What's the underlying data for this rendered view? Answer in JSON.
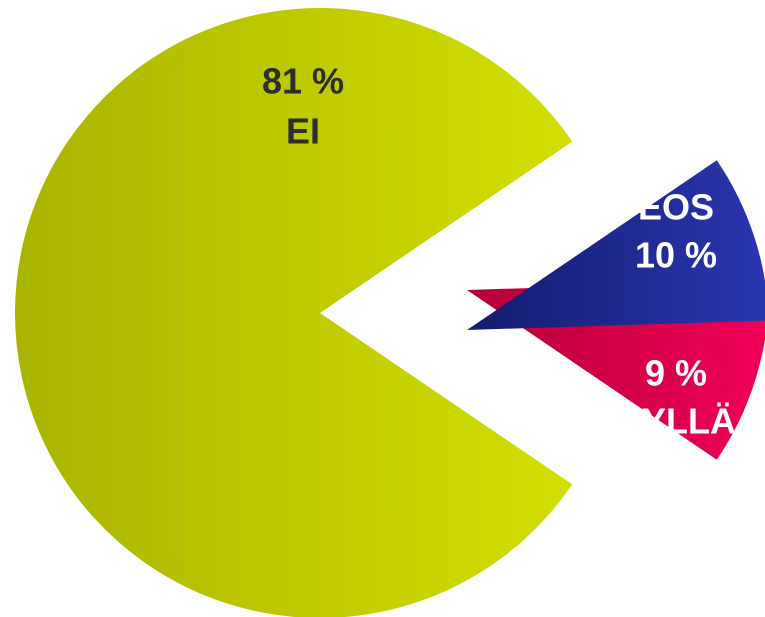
{
  "chart_data": {
    "type": "pie",
    "title": "",
    "legend": "none",
    "slices": [
      {
        "category": "EI",
        "value": 81,
        "value_label": "81 %",
        "color": "#b8c400",
        "gradient": [
          "#a9b400",
          "#d2df00"
        ],
        "label_color": "#2e2e2e",
        "value_first": true
      },
      {
        "category": "EOS",
        "value": 10,
        "value_label": "10 %",
        "color": "#e8004c",
        "gradient": [
          "#b30036",
          "#f2005a"
        ],
        "label_color": "#ffffff",
        "value_first": false
      },
      {
        "category": "KYLLÄ",
        "value": 9,
        "value_label": "9 %",
        "color": "#1f2c92",
        "gradient": [
          "#141c6e",
          "#2a36b0"
        ],
        "label_color": "#ffffff",
        "value_first": true
      }
    ]
  }
}
